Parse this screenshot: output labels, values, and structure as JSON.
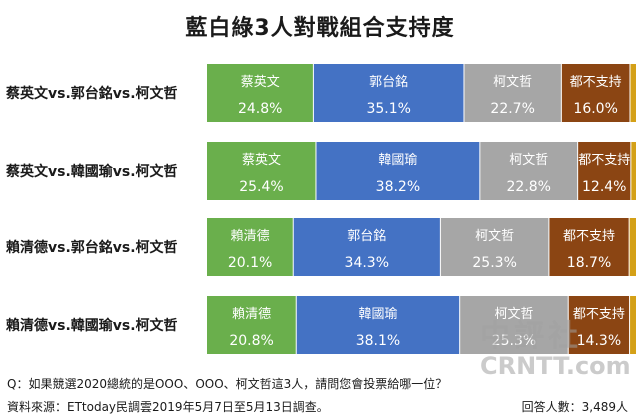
{
  "title": "藍白綠3人對戰組合支持度",
  "question": "Q：如果競選2020總統的是OOO、OOO、柯文哲這3人，請問您會投票給哪一位？",
  "source": "資料來源：ETtoday民調雲2019年5月7日至5月13日調查。",
  "respondents": "回答人數：3,489人",
  "watermark": {
    "line1": "中評社",
    "line2": "CRNTT.com"
  },
  "colors": {
    "green": "#6aaf4c",
    "blue": "#4472c4",
    "gray": "#a6a6a6",
    "brown": "#8b4513",
    "gold": "#d4a017"
  },
  "chart_data": {
    "type": "bar",
    "stacked": true,
    "orientation": "horizontal",
    "unit": "%",
    "rows": [
      {
        "label": "蔡英文vs.郭台銘vs.柯文哲",
        "segments": [
          {
            "name": "蔡英文",
            "value": 24.8,
            "display": "24.8%",
            "color": "#6aaf4c"
          },
          {
            "name": "郭台銘",
            "value": 35.1,
            "display": "35.1%",
            "color": "#4472c4"
          },
          {
            "name": "柯文哲",
            "value": 22.7,
            "display": "22.7%",
            "color": "#a6a6a6"
          },
          {
            "name": "都不支持",
            "value": 16.0,
            "display": "16.0%",
            "color": "#8b4513"
          },
          {
            "name": "",
            "value": 1.4,
            "display": "",
            "color": "#d4a017"
          }
        ]
      },
      {
        "label": "蔡英文vs.韓國瑜vs.柯文哲",
        "segments": [
          {
            "name": "蔡英文",
            "value": 25.4,
            "display": "25.4%",
            "color": "#6aaf4c"
          },
          {
            "name": "韓國瑜",
            "value": 38.2,
            "display": "38.2%",
            "color": "#4472c4"
          },
          {
            "name": "柯文哲",
            "value": 22.8,
            "display": "22.8%",
            "color": "#a6a6a6"
          },
          {
            "name": "都不支持",
            "value": 12.4,
            "display": "12.4%",
            "color": "#8b4513"
          },
          {
            "name": "",
            "value": 1.2,
            "display": "",
            "color": "#d4a017"
          }
        ]
      },
      {
        "label": "賴清德vs.郭台銘vs.柯文哲",
        "segments": [
          {
            "name": "賴清德",
            "value": 20.1,
            "display": "20.1%",
            "color": "#6aaf4c"
          },
          {
            "name": "郭台銘",
            "value": 34.3,
            "display": "34.3%",
            "color": "#4472c4"
          },
          {
            "name": "柯文哲",
            "value": 25.3,
            "display": "25.3%",
            "color": "#a6a6a6"
          },
          {
            "name": "都不支持",
            "value": 18.7,
            "display": "18.7%",
            "color": "#8b4513"
          },
          {
            "name": "",
            "value": 1.6,
            "display": "",
            "color": "#d4a017"
          }
        ]
      },
      {
        "label": "賴清德vs.韓國瑜vs.柯文哲",
        "segments": [
          {
            "name": "賴清德",
            "value": 20.8,
            "display": "20.8%",
            "color": "#6aaf4c"
          },
          {
            "name": "韓國瑜",
            "value": 38.1,
            "display": "38.1%",
            "color": "#4472c4"
          },
          {
            "name": "柯文哲",
            "value": 25.3,
            "display": "25.3%",
            "color": "#a6a6a6"
          },
          {
            "name": "都不支持",
            "value": 14.3,
            "display": "14.3%",
            "color": "#8b4513"
          },
          {
            "name": "",
            "value": 1.5,
            "display": "",
            "color": "#d4a017"
          }
        ]
      }
    ]
  }
}
